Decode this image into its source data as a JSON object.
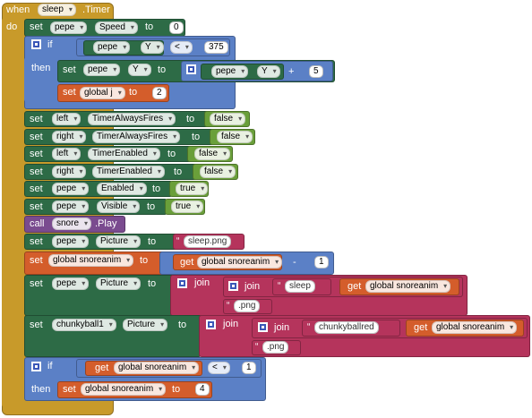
{
  "event": {
    "when": "when",
    "component": "sleep",
    "event_name": ".Timer",
    "do": "do"
  },
  "kw": {
    "set": "set",
    "to": "to",
    "if": "if",
    "then": "then",
    "call": "call",
    "get": "get",
    "join": "join",
    "set_global": "set global",
    "global_j": "global j"
  },
  "blocks": {
    "b1": {
      "component": "pepe",
      "property": "Speed",
      "value": "0"
    },
    "if1": {
      "component": "pepe",
      "property": "Y",
      "op": "<",
      "value": "375"
    },
    "then1": {
      "component": "pepe",
      "property": "Y",
      "op": "+",
      "value": "5"
    },
    "then2": {
      "var": "global j",
      "value": "2"
    },
    "b2": {
      "component": "left",
      "property": "TimerAlwaysFires",
      "value": "false"
    },
    "b3": {
      "component": "right",
      "property": "TimerAlwaysFires",
      "value": "false"
    },
    "b4": {
      "component": "left",
      "property": "TimerEnabled",
      "value": "false"
    },
    "b5": {
      "component": "right",
      "property": "TimerEnabled",
      "value": "false"
    },
    "b6": {
      "component": "pepe",
      "property": "Enabled",
      "value": "true"
    },
    "b7": {
      "component": "pepe",
      "property": "Visible",
      "value": "true"
    },
    "b8": {
      "component": "snore",
      "method": ".Play"
    },
    "b9": {
      "component": "pepe",
      "property": "Picture",
      "value": "sleep.png"
    },
    "b10": {
      "var": "global snoreanim",
      "get_var": "global snoreanim",
      "op": "-",
      "value": "1"
    },
    "b11": {
      "component": "pepe",
      "property": "Picture",
      "text1": "sleep",
      "get_var": "global snoreanim",
      "text2": ".png"
    },
    "b12": {
      "component": "chunkyball1",
      "property": "Picture",
      "text1": "chunkyballred",
      "get_var": "global snoreanim",
      "text2": ".png"
    },
    "if2": {
      "get_var": "global snoreanim",
      "op": "<",
      "value": "1"
    },
    "then3": {
      "var": "global snoreanim",
      "value": "4"
    }
  },
  "colors": {
    "event": "#c89a2a",
    "component": "#2d6b46",
    "math": "#5b80c6",
    "logic": "#6a9f3a",
    "text": "#b5345c",
    "variable": "#d45d2b",
    "procedure": "#7a4b8f"
  }
}
